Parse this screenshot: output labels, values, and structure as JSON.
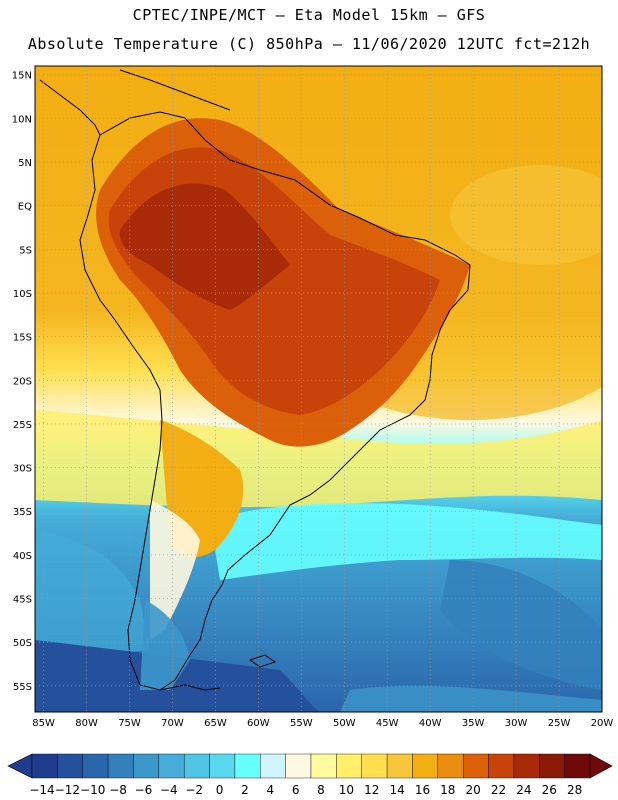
{
  "header": {
    "line1": "CPTEC/INPE/MCT –  Eta Model 15km – GFS",
    "line2": "Absolute Temperature (C) 850hPa – 11/06/2020 12UTC fct=212h"
  },
  "map": {
    "lat_labels": [
      "15N",
      "10N",
      "5N",
      "EQ",
      "5S",
      "10S",
      "15S",
      "20S",
      "25S",
      "30S",
      "35S",
      "40S",
      "45S",
      "50S",
      "55S"
    ],
    "lon_labels": [
      "85W",
      "80W",
      "75W",
      "70W",
      "65W",
      "60W",
      "55W",
      "50W",
      "45W",
      "40W",
      "35W",
      "30W",
      "25W",
      "20W"
    ],
    "extent": {
      "lon_min": -86,
      "lon_max": -20,
      "lat_min": -58,
      "lat_max": 16
    },
    "gridlines": "dotted"
  },
  "colorbar": {
    "tick_labels": [
      "-14",
      "-12",
      "-10",
      "-8",
      "-6",
      "-4",
      "-2",
      "0",
      "2",
      "4",
      "6",
      "8",
      "10",
      "12",
      "14",
      "16",
      "18",
      "20",
      "22",
      "24",
      "26",
      "28"
    ],
    "colors": [
      "#1f3d8c",
      "#24509c",
      "#2a66ac",
      "#3380bc",
      "#3c97cb",
      "#45add8",
      "#4fc4e4",
      "#5ad8ef",
      "#66ffff",
      "#cff4fb",
      "#fff8e0",
      "#fffb9e",
      "#ffef6a",
      "#ffdf4f",
      "#f6c63c",
      "#f2ae12",
      "#ea8d10",
      "#dc5f0a",
      "#c8430a",
      "#a82a08",
      "#8a1a06",
      "#6e0a0a"
    ]
  }
}
